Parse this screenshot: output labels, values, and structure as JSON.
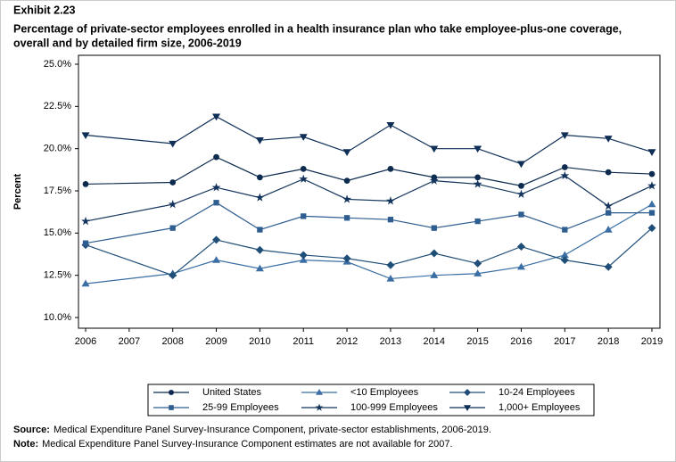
{
  "chart_data": {
    "type": "line",
    "exhibit": "Exhibit 2.23",
    "title": [
      "Percentage of private-sector employees enrolled in a health insurance plan who take employee-plus-one coverage,",
      "overall and by detailed firm size, 2006-2019"
    ],
    "y_label": "Percent",
    "x": [
      2006,
      2008,
      2009,
      2010,
      2011,
      2012,
      2013,
      2014,
      2015,
      2016,
      2017,
      2018,
      2019
    ],
    "xlim": [
      2006,
      2019
    ],
    "xticks": [
      2006,
      2007,
      2008,
      2009,
      2010,
      2011,
      2012,
      2013,
      2014,
      2015,
      2016,
      2017,
      2018,
      2019
    ],
    "ylim": [
      10,
      25
    ],
    "yticks": [
      {
        "value": 10,
        "label": "10.0%"
      },
      {
        "value": 12.5,
        "label": "12.5%"
      },
      {
        "value": 15,
        "label": "15.0%"
      },
      {
        "value": 17.5,
        "label": "17.5%"
      },
      {
        "value": 20,
        "label": "20.0%"
      },
      {
        "value": 22.5,
        "label": "22.5%"
      },
      {
        "value": 25,
        "label": "25.0%"
      }
    ],
    "series": [
      {
        "name": "United States",
        "color": "#0d2b4e",
        "marker": "circle",
        "values": [
          17.9,
          18.0,
          19.5,
          18.3,
          18.8,
          18.1,
          18.8,
          18.3,
          18.3,
          17.8,
          18.9,
          18.6,
          18.5
        ]
      },
      {
        "name": "<10 Employees",
        "color": "#3a6ea5",
        "marker": "triangle",
        "values": [
          12.0,
          12.6,
          13.4,
          12.9,
          13.4,
          13.3,
          12.3,
          12.5,
          12.6,
          13.0,
          13.7,
          15.2,
          16.7
        ]
      },
      {
        "name": "10-24 Employees",
        "color": "#1f4e79",
        "marker": "diamond",
        "values": [
          14.3,
          12.5,
          14.6,
          14.0,
          13.7,
          13.5,
          13.1,
          13.8,
          13.2,
          14.2,
          13.4,
          13.0,
          15.3
        ]
      },
      {
        "name": "25-99 Employees",
        "color": "#2e5d8f",
        "marker": "square",
        "values": [
          14.4,
          15.3,
          16.8,
          15.2,
          16.0,
          15.9,
          15.8,
          15.3,
          15.7,
          16.1,
          15.2,
          16.2,
          16.2
        ]
      },
      {
        "name": "100-999 Employees",
        "color": "#13345c",
        "marker": "star",
        "values": [
          15.7,
          16.7,
          17.7,
          17.1,
          18.2,
          17.0,
          16.9,
          18.1,
          17.9,
          17.3,
          18.4,
          16.6,
          17.8
        ]
      },
      {
        "name": "1,000+ Employees",
        "color": "#0f2f57",
        "marker": "triangle-down",
        "values": [
          20.8,
          20.3,
          21.9,
          20.5,
          20.7,
          19.8,
          21.4,
          20.0,
          20.0,
          19.1,
          20.8,
          20.6,
          19.8
        ]
      }
    ],
    "notes": [
      {
        "label": "Source:",
        "text": "Medical Expenditure Panel Survey-Insurance Component, private-sector establishments, 2006-2019."
      },
      {
        "label": "Note:",
        "text": "Medical Expenditure Panel Survey-Insurance Component estimates are not available for 2007."
      }
    ]
  }
}
